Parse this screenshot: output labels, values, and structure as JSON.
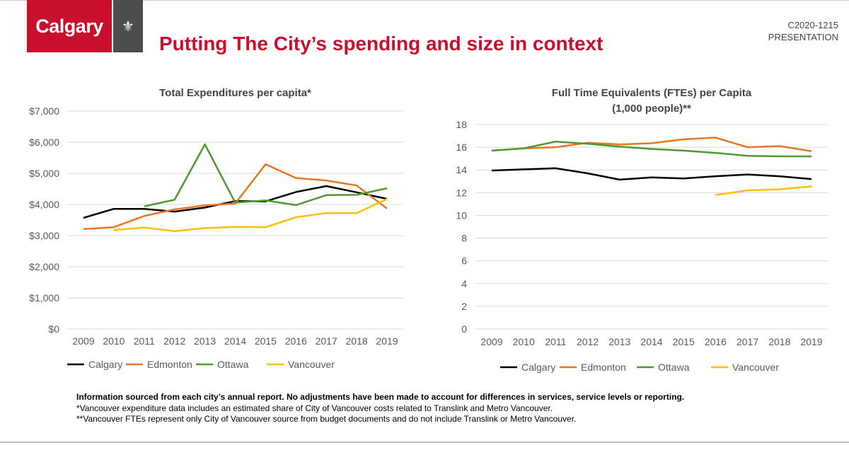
{
  "header": {
    "logo_text": "Calgary",
    "title": "Putting The City’s spending and size in context",
    "doc_code": "C2020-1215",
    "doc_type": "PRESENTATION"
  },
  "colors": {
    "Calgary": "#000000",
    "Edmonton": "#e87722",
    "Ottawa": "#4e9a2e",
    "Vancouver": "#ffc000",
    "accent": "#c8102e"
  },
  "chart_data": [
    {
      "type": "line",
      "title": "Total Expenditures per capita*",
      "xlabel": "",
      "ylabel": "",
      "categories": [
        "2009",
        "2010",
        "2011",
        "2012",
        "2013",
        "2014",
        "2015",
        "2016",
        "2017",
        "2018",
        "2019"
      ],
      "ylim": [
        0,
        7000
      ],
      "yticks": [
        0,
        1000,
        2000,
        3000,
        4000,
        5000,
        6000,
        7000
      ],
      "ytick_labels": [
        "$0",
        "$1,000",
        "$2,000",
        "$3,000",
        "$4,000",
        "$5,000",
        "$6,000",
        "$7,000"
      ],
      "grid": true,
      "legend": "bottom",
      "series": [
        {
          "name": "Calgary",
          "values": [
            3570,
            3860,
            3860,
            3770,
            3900,
            4110,
            4100,
            4400,
            4590,
            4390,
            4180
          ]
        },
        {
          "name": "Edmonton",
          "values": [
            3210,
            3270,
            3630,
            3840,
            3970,
            4030,
            5290,
            4850,
            4770,
            4610,
            3870
          ]
        },
        {
          "name": "Ottawa",
          "values": [
            null,
            null,
            3940,
            4150,
            5930,
            4060,
            4130,
            3980,
            4300,
            4310,
            4520
          ]
        },
        {
          "name": "Vancouver",
          "values": [
            null,
            3180,
            3260,
            3140,
            3240,
            3280,
            3270,
            3590,
            3720,
            3720,
            4180
          ]
        }
      ]
    },
    {
      "type": "line",
      "title": "Full Time Equivalents (FTEs) per Capita",
      "subtitle": "(1,000 people)**",
      "xlabel": "",
      "ylabel": "",
      "categories": [
        "2009",
        "2010",
        "2011",
        "2012",
        "2013",
        "2014",
        "2015",
        "2016",
        "2017",
        "2018",
        "2019"
      ],
      "ylim": [
        0,
        18
      ],
      "yticks": [
        0,
        2,
        4,
        6,
        8,
        10,
        12,
        14,
        16,
        18
      ],
      "ytick_labels": [
        "0",
        "2",
        "4",
        "6",
        "8",
        "10",
        "12",
        "14",
        "16",
        "18"
      ],
      "grid": true,
      "legend": "bottom",
      "series": [
        {
          "name": "Calgary",
          "values": [
            13.95,
            14.05,
            14.15,
            13.7,
            13.15,
            13.35,
            13.25,
            13.45,
            13.6,
            13.45,
            13.2
          ]
        },
        {
          "name": "Edmonton",
          "values": [
            15.7,
            15.9,
            16.0,
            16.4,
            16.25,
            16.35,
            16.7,
            16.85,
            16.0,
            16.1,
            15.65
          ]
        },
        {
          "name": "Ottawa",
          "values": [
            15.7,
            15.9,
            16.5,
            16.3,
            16.05,
            15.85,
            15.7,
            15.5,
            15.25,
            15.2,
            15.2
          ]
        },
        {
          "name": "Vancouver",
          "values": [
            null,
            null,
            null,
            null,
            null,
            null,
            null,
            11.8,
            12.2,
            12.3,
            12.55
          ]
        }
      ]
    }
  ],
  "notes": {
    "main": "Information sourced from each city’s annual report. No adjustments have been made to account for differences in services, service levels or reporting.",
    "note1": "*Vancouver expenditure data includes an estimated share of City of Vancouver costs related to Translink and Metro Vancouver.",
    "note2": "**Vancouver FTEs represent only City of Vancouver source from budget documents and do not include Translink or Metro Vancouver."
  }
}
